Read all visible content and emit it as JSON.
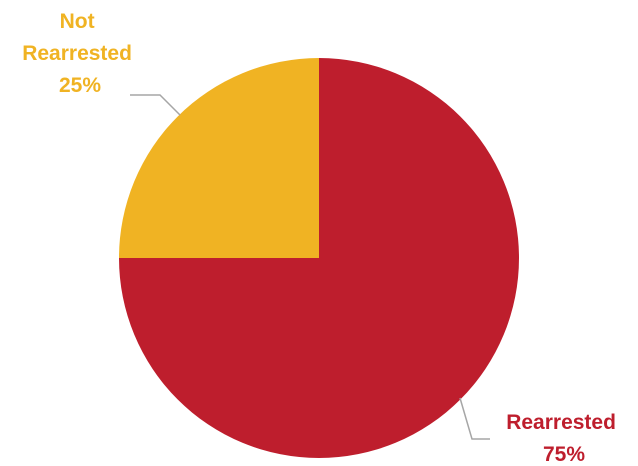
{
  "chart_data": {
    "type": "pie",
    "title": "",
    "slices": [
      {
        "name": "Rearrested",
        "value": 75,
        "pct_label": "75%",
        "color": "#be1e2d"
      },
      {
        "name": "Not Rearrested",
        "value": 25,
        "pct_label": "25%",
        "color": "#f0b323"
      }
    ],
    "start": "12 o'clock",
    "direction": "clockwise",
    "labels": "outside with leader lines"
  }
}
